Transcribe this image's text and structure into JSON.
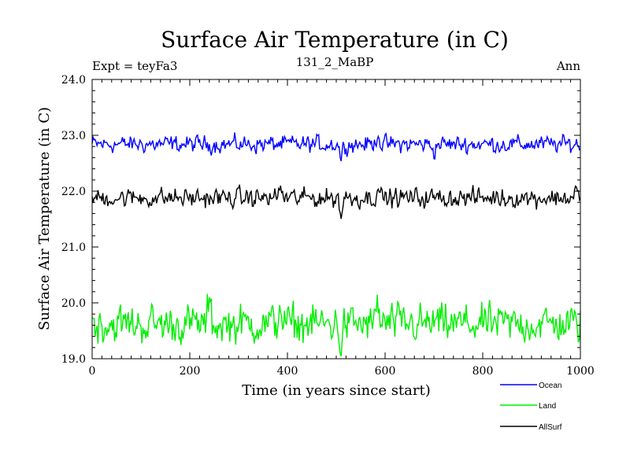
{
  "chart_data": {
    "type": "line",
    "title": "Surface Air Temperature (in C)",
    "subtitle_left": "Expt = teyFa3",
    "subtitle_center": "131_2_MaBP",
    "subtitle_right": "Ann",
    "xlabel": "Time (in years since start)",
    "ylabel": "Surface Air Temperature (in C)",
    "xlim": [
      0,
      1000
    ],
    "ylim": [
      19.0,
      24.0
    ],
    "xticks": [
      0,
      200,
      400,
      600,
      800,
      1000
    ],
    "xtick_labels": [
      "0",
      "200",
      "400",
      "600",
      "800",
      "1000"
    ],
    "yticks": [
      19.0,
      20.0,
      21.0,
      22.0,
      23.0,
      24.0
    ],
    "ytick_labels": [
      "19.0",
      "20.0",
      "21.0",
      "22.0",
      "23.0",
      "24.0"
    ],
    "grid": false,
    "legend_position": "bottom-right, outside plot",
    "series_approximation": "annual values; mean level and noise amplitude estimated from plot, individual years synthesized",
    "series": [
      {
        "name": "Ocean",
        "color": "#0000ff",
        "mean": 22.84,
        "noise": 0.07,
        "features": [
          {
            "x": 510,
            "y": 22.58
          },
          {
            "x": 585,
            "y": 23.08
          },
          {
            "x": 700,
            "y": 22.7
          }
        ]
      },
      {
        "name": "Land",
        "color": "#00ee00",
        "mean": 19.62,
        "noise": 0.16,
        "features": [
          {
            "x": 240,
            "y": 20.05
          },
          {
            "x": 385,
            "y": 20.08
          },
          {
            "x": 510,
            "y": 19.15
          },
          {
            "x": 585,
            "y": 20.05
          }
        ]
      },
      {
        "name": "AllSurf",
        "color": "#000000",
        "mean": 21.88,
        "noise": 0.08,
        "features": [
          {
            "x": 385,
            "y": 22.12
          },
          {
            "x": 510,
            "y": 21.55
          },
          {
            "x": 585,
            "y": 22.15
          },
          {
            "x": 990,
            "y": 22.05
          }
        ]
      }
    ]
  }
}
